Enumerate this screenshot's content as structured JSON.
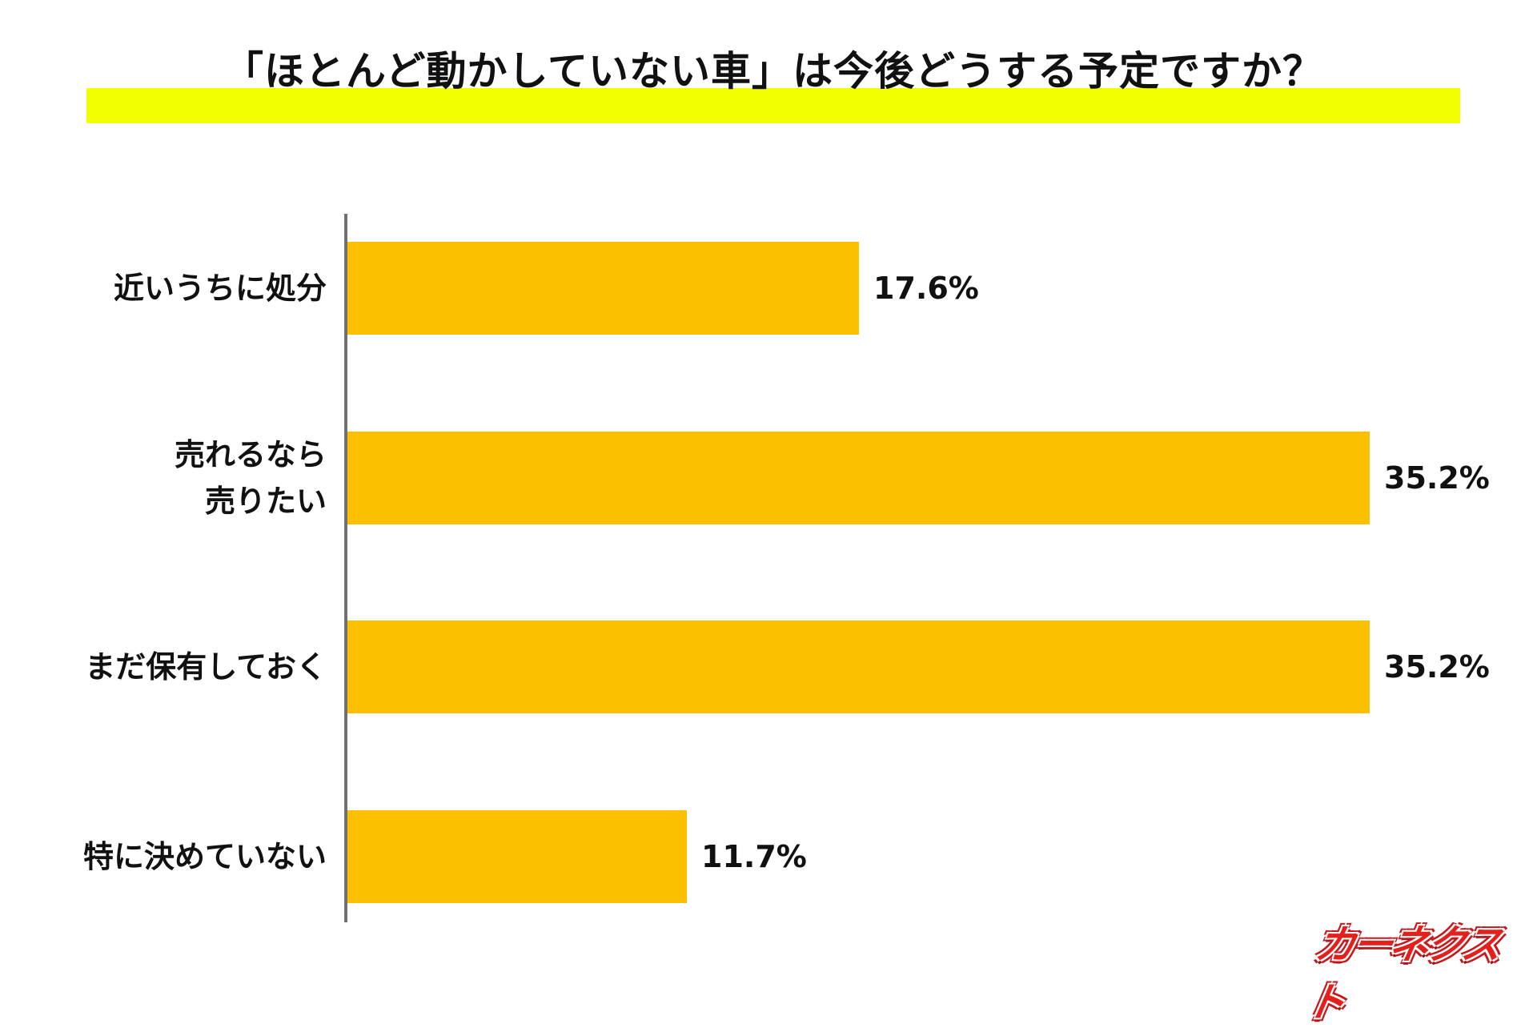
{
  "title": "「ほとんど動かしていない車」は今後どうする予定ですか？",
  "colors": {
    "title_highlight": "#F2FF00",
    "bar": "#FDC000",
    "axis": "#707070",
    "text": "#111111",
    "logo": "#E3201B"
  },
  "logo": {
    "text": "カーネクスト"
  },
  "chart_data": {
    "type": "bar",
    "orientation": "horizontal",
    "title": "「ほとんど動かしていない車」は今後どうする予定ですか？",
    "categories": [
      "近いうちに処分",
      "売れるなら\n売りたい",
      "まだ保有しておく",
      "特に決めていない"
    ],
    "values": [
      17.6,
      35.2,
      35.2,
      11.7
    ],
    "value_labels": [
      "17.6%",
      "35.2%",
      "35.2%",
      "11.7%"
    ],
    "unit": "%",
    "xlabel": "",
    "ylabel": "",
    "xlim": [
      0,
      35.2
    ],
    "grid": false,
    "legend": null
  }
}
